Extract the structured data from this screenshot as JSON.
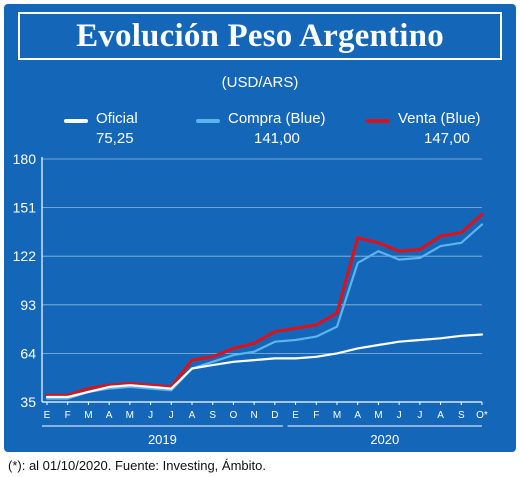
{
  "header": {
    "title": "Evolución Peso Argentino",
    "subtitle": "(USD/ARS)"
  },
  "legend": [
    {
      "name": "Oficial",
      "value": "75,25",
      "color": "#ffffff"
    },
    {
      "name": "Compra (Blue)",
      "value": "141,00",
      "color": "#5ab4ee"
    },
    {
      "name": "Venta (Blue)",
      "value": "147,00",
      "color": "#d7141e"
    }
  ],
  "footnote": "(*): al 01/10/2020. Fuente: Investing, Ámbito.",
  "colors": {
    "background": "#1467b8",
    "gridline": "#8fb8e0",
    "oficial": "#ffffff",
    "compra": "#5ab4ee",
    "venta": "#d7141e"
  },
  "chart_data": {
    "type": "line",
    "ylim": [
      35,
      180
    ],
    "yticks": [
      35,
      64,
      93,
      122,
      151,
      180
    ],
    "ytick_labels": [
      "35",
      "64",
      "93",
      "122",
      "151",
      "180"
    ],
    "x_tick_labels": [
      "E",
      "F",
      "M",
      "A",
      "M",
      "J",
      "J",
      "A",
      "S",
      "O",
      "N",
      "D",
      "E",
      "F",
      "M",
      "A",
      "M",
      "J",
      "J",
      "A",
      "S",
      "O*"
    ],
    "year_labels": [
      "2019",
      "2020"
    ],
    "grid": true,
    "x": [
      "2019-01",
      "2019-02",
      "2019-03",
      "2019-04",
      "2019-05",
      "2019-06",
      "2019-07",
      "2019-08",
      "2019-09",
      "2019-10",
      "2019-11",
      "2019-12",
      "2020-01",
      "2020-02",
      "2020-03",
      "2020-04",
      "2020-05",
      "2020-06",
      "2020-07",
      "2020-08",
      "2020-09",
      "2020-10"
    ],
    "series": [
      {
        "name": "Oficial",
        "values": [
          38,
          38,
          41,
          44,
          45,
          44,
          43,
          55,
          57,
          59,
          60,
          61,
          61,
          62,
          64,
          67,
          69,
          71,
          72,
          73,
          74.5,
          75.25
        ]
      },
      {
        "name": "Compra (Blue)",
        "values": [
          37,
          37,
          41,
          43,
          44,
          43,
          42,
          55,
          59,
          63,
          65,
          71,
          72,
          74,
          80,
          118,
          125,
          120,
          121,
          128,
          130,
          141
        ]
      },
      {
        "name": "Venta (Blue)",
        "values": [
          39,
          39,
          43,
          45,
          46,
          45,
          44,
          60,
          62,
          67,
          70,
          77,
          79,
          81,
          88,
          133,
          130,
          125,
          126,
          134,
          136,
          147
        ]
      }
    ]
  }
}
